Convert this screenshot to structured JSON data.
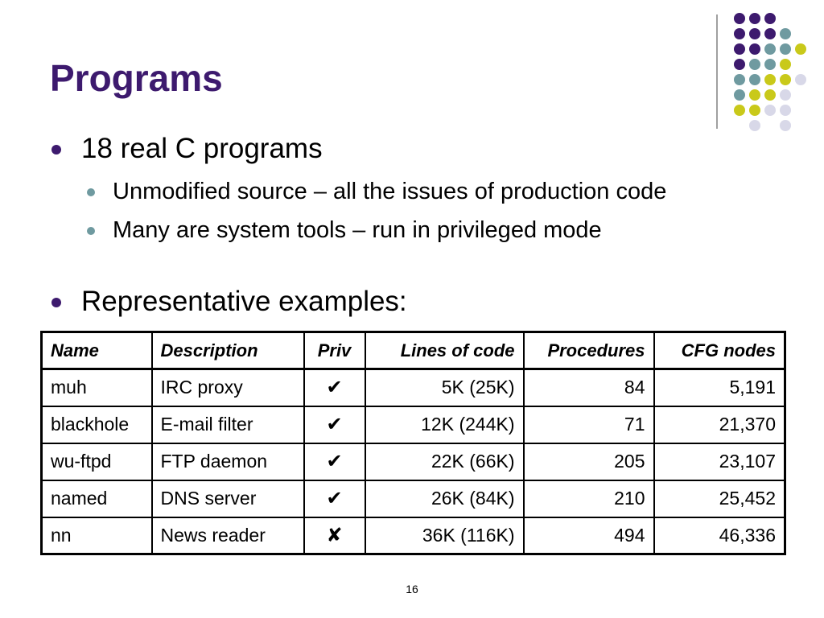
{
  "title": "Programs",
  "bullets": [
    {
      "text": "18 real C programs"
    },
    {
      "text": "Unmodified source – all the issues of production code"
    },
    {
      "text": "Many are system tools – run in privileged mode"
    },
    {
      "text": "Representative examples:"
    }
  ],
  "table": {
    "headers": [
      "Name",
      "Description",
      "Priv",
      "Lines of code",
      "Procedures",
      "CFG nodes"
    ],
    "rows": [
      [
        "muh",
        "IRC proxy",
        "✔",
        "5K (25K)",
        "84",
        "5,191"
      ],
      [
        "blackhole",
        "E-mail filter",
        "✔",
        "12K (244K)",
        "71",
        "21,370"
      ],
      [
        "wu-ftpd",
        "FTP daemon",
        "✔",
        "22K (66K)",
        "205",
        "23,107"
      ],
      [
        "named",
        "DNS server",
        "✔",
        "26K (84K)",
        "210",
        "25,452"
      ],
      [
        "nn",
        "News reader",
        "✘",
        "36K (116K)",
        "494",
        "46,336"
      ]
    ]
  },
  "page_number": "16",
  "colors": {
    "title": "#3d1a6e",
    "dot_purple": "#3d1a6e",
    "dot_teal": "#6f9aa0",
    "dot_yellow": "#c9c91a",
    "dot_lavender": "#d8d8e8"
  }
}
